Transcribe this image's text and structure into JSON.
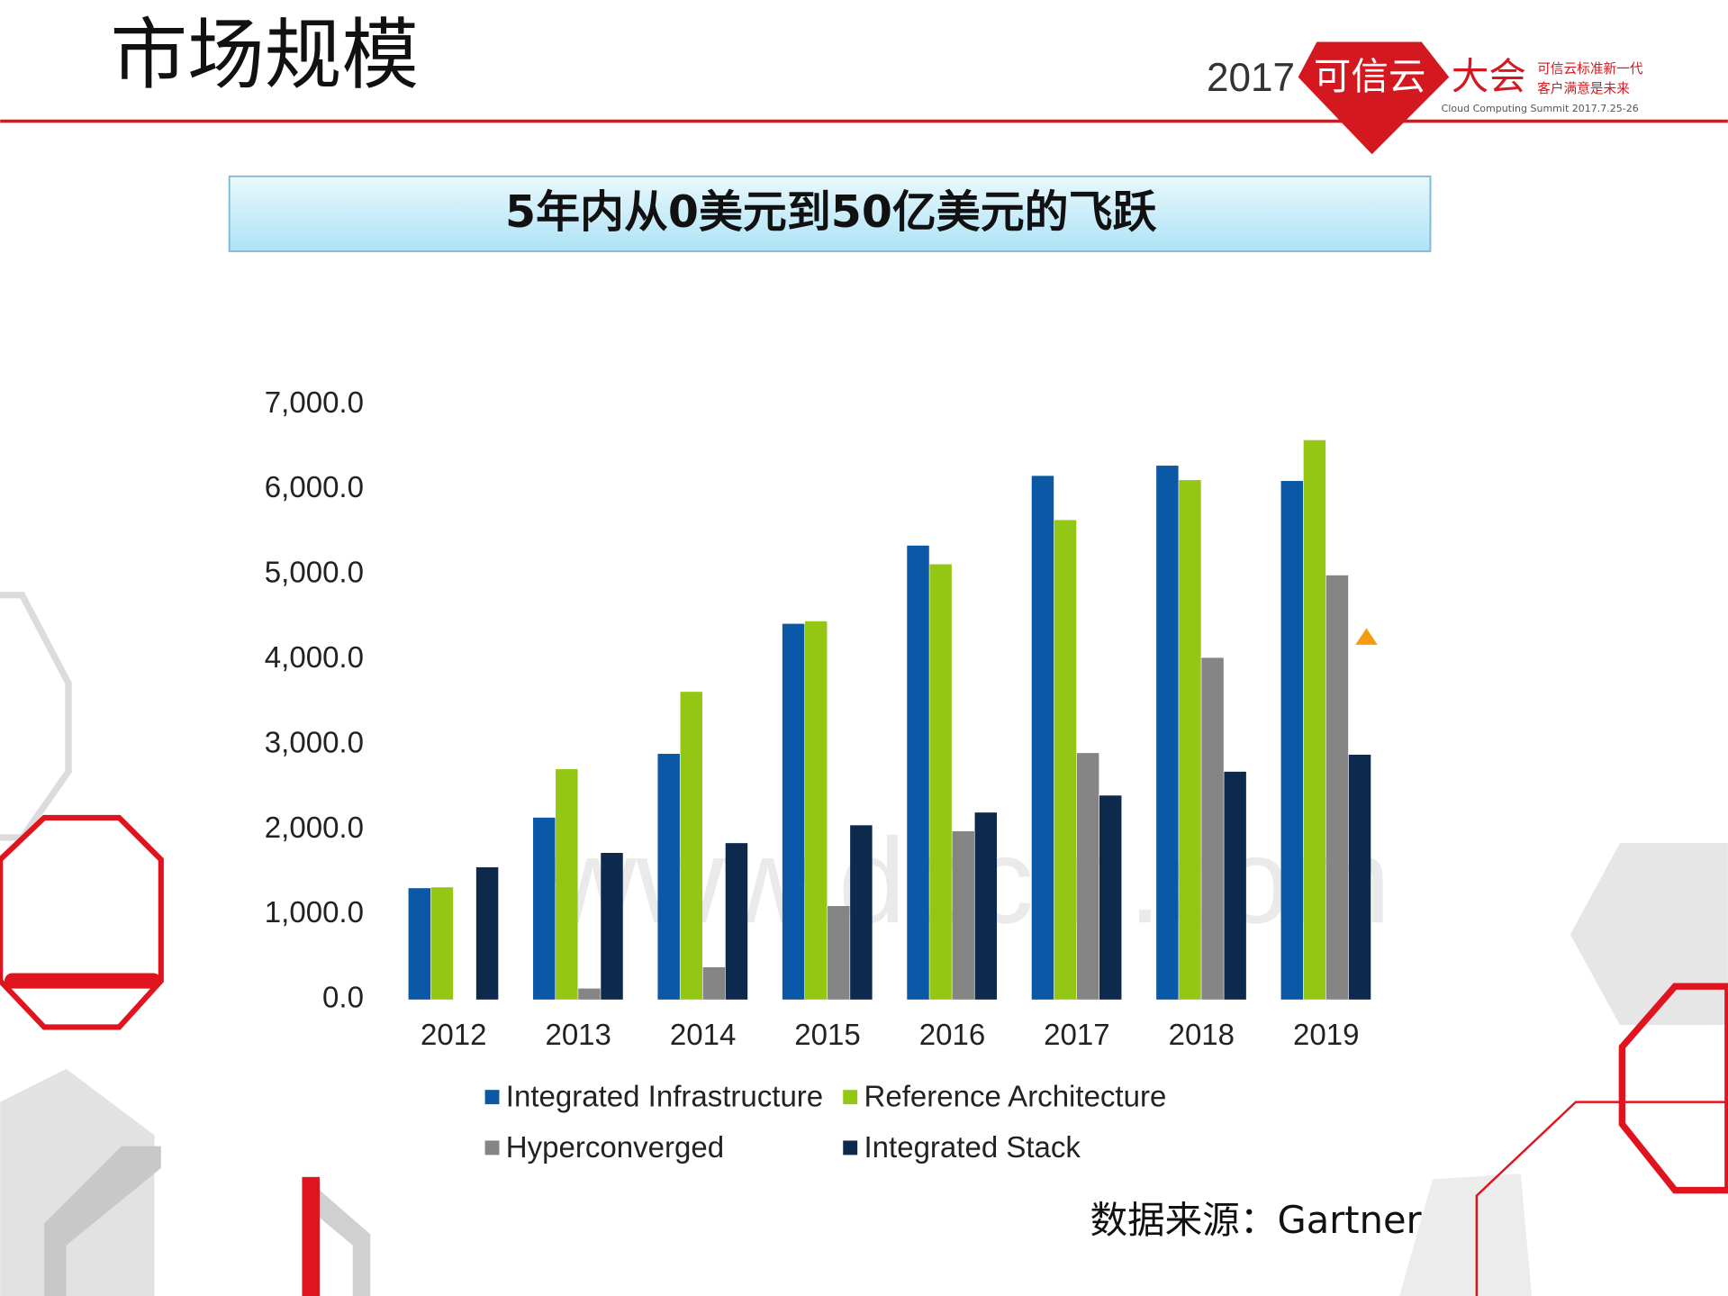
{
  "header": {
    "title": "市场规模",
    "logo_year": "2017",
    "logo_name": "可信云",
    "logo_event": "大会",
    "logo_slogan_1": "可信云标准新一代",
    "logo_slogan_2": "客户满意是未来",
    "logo_sub": "Cloud Computing Summit 2017.7.25-26"
  },
  "banner": "5年内从0美元到50亿美元的飞跃",
  "watermark": "www.docin.com",
  "source": "数据来源：Gartner",
  "chart_data": {
    "type": "bar",
    "categories": [
      "2012",
      "2013",
      "2014",
      "2015",
      "2016",
      "2017",
      "2018",
      "2019"
    ],
    "series": [
      {
        "name": "Integrated Infrastructure",
        "color": "#0b59a6",
        "values": [
          1310,
          2140,
          2890,
          4420,
          5340,
          6160,
          6280,
          6100
        ]
      },
      {
        "name": "Reference Architecture",
        "color": "#94c713",
        "values": [
          1320,
          2710,
          3620,
          4450,
          5120,
          5640,
          6110,
          6580
        ]
      },
      {
        "name": "Hyperconverged",
        "color": "#858585",
        "values": [
          0,
          130,
          380,
          1100,
          1980,
          2900,
          4020,
          4990
        ]
      },
      {
        "name": "Integrated Stack",
        "color": "#0d2a4d",
        "values": [
          1556,
          1725,
          1840,
          2050,
          2200,
          2400,
          2680,
          2880
        ]
      }
    ],
    "ylim": [
      0,
      7000
    ],
    "yticks": [
      {
        "value": 0,
        "label": "0.0"
      },
      {
        "value": 1000,
        "label": "1,000.0"
      },
      {
        "value": 2000,
        "label": "2,000.0"
      },
      {
        "value": 3000,
        "label": "3,000.0"
      },
      {
        "value": 4000,
        "label": "4,000.0"
      },
      {
        "value": 5000,
        "label": "5,000.0"
      },
      {
        "value": 6000,
        "label": "6,000.0"
      },
      {
        "value": 7000,
        "label": "7,000.0"
      }
    ],
    "grid": false,
    "legend": "bottom"
  }
}
